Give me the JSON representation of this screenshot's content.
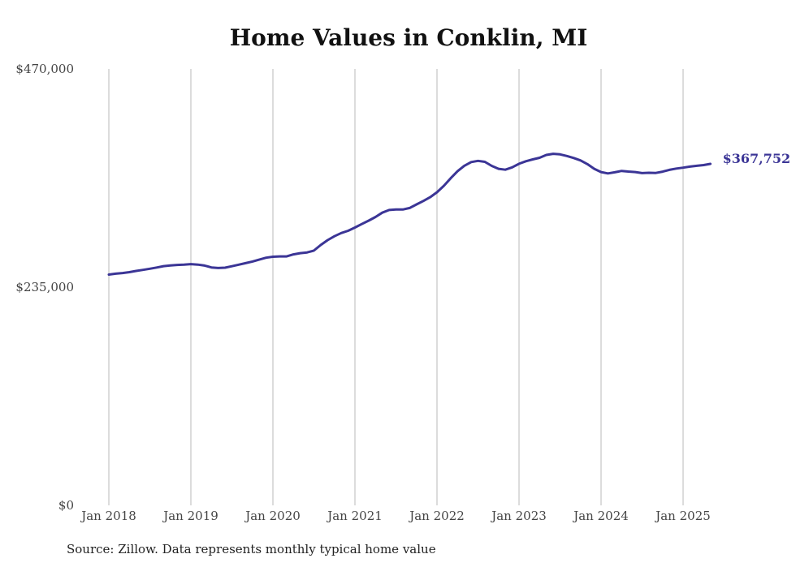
{
  "chart_data": {
    "type": "line",
    "title": "Home Values in Conklin, MI",
    "xlabel": "",
    "ylabel": "",
    "ylim": [
      0,
      470000
    ],
    "y_ticks": [
      {
        "value": 0,
        "label": "$0"
      },
      {
        "value": 235000,
        "label": "$235,000"
      },
      {
        "value": 470000,
        "label": "$470,000"
      }
    ],
    "x_ticks": [
      {
        "value": 2018.0,
        "label": "Jan 2018"
      },
      {
        "value": 2019.0,
        "label": "Jan 2019"
      },
      {
        "value": 2020.0,
        "label": "Jan 2020"
      },
      {
        "value": 2021.0,
        "label": "Jan 2021"
      },
      {
        "value": 2022.0,
        "label": "Jan 2022"
      },
      {
        "value": 2023.0,
        "label": "Jan 2023"
      },
      {
        "value": 2024.0,
        "label": "Jan 2024"
      },
      {
        "value": 2025.0,
        "label": "Jan 2025"
      }
    ],
    "grid": "vertical",
    "line_color": "#3b3596",
    "end_label": "$367,752",
    "series": [
      {
        "x": [
          2018.0,
          2018.083,
          2018.167,
          2018.25,
          2018.333,
          2018.417,
          2018.5,
          2018.583,
          2018.667,
          2018.75,
          2018.833,
          2018.917,
          2019.0,
          2019.083,
          2019.167,
          2019.25,
          2019.333,
          2019.417,
          2019.5,
          2019.583,
          2019.667,
          2019.75,
          2019.833,
          2019.917,
          2020.0,
          2020.083,
          2020.167,
          2020.25,
          2020.333,
          2020.417,
          2020.5,
          2020.583,
          2020.667,
          2020.75,
          2020.833,
          2020.917,
          2021.0,
          2021.083,
          2021.167,
          2021.25,
          2021.333,
          2021.417,
          2021.5,
          2021.583,
          2021.667,
          2021.75,
          2021.833,
          2021.917,
          2022.0,
          2022.083,
          2022.167,
          2022.25,
          2022.333,
          2022.417,
          2022.5,
          2022.583,
          2022.667,
          2022.75,
          2022.833,
          2022.917,
          2023.0,
          2023.083,
          2023.167,
          2023.25,
          2023.333,
          2023.417,
          2023.5,
          2023.583,
          2023.667,
          2023.75,
          2023.833,
          2023.917,
          2024.0,
          2024.083,
          2024.167,
          2024.25,
          2024.333,
          2024.417,
          2024.5,
          2024.583,
          2024.667,
          2024.75,
          2024.833,
          2024.917,
          2025.0,
          2025.083,
          2025.167,
          2025.25,
          2025.333
        ],
        "values": [
          248500,
          249500,
          250200,
          251200,
          252500,
          253600,
          254800,
          256100,
          257600,
          258400,
          258900,
          259200,
          259800,
          259300,
          258200,
          256200,
          255600,
          256000,
          257500,
          259200,
          260900,
          262600,
          264600,
          266700,
          267800,
          268100,
          268100,
          270300,
          271600,
          272400,
          274400,
          280400,
          285700,
          289900,
          293300,
          295700,
          299200,
          303000,
          306600,
          310600,
          315200,
          318100,
          318600,
          318600,
          320300,
          324100,
          327800,
          331900,
          337200,
          344100,
          352300,
          359800,
          365700,
          369700,
          371000,
          370000,
          365600,
          362500,
          361500,
          364000,
          367900,
          370600,
          372600,
          374300,
          377400,
          378600,
          378000,
          376300,
          374100,
          371500,
          367500,
          362500,
          359000,
          357500,
          358700,
          360200,
          359500,
          359000,
          357800,
          358200,
          358000,
          359400,
          361300,
          362700,
          363700,
          364800,
          365700,
          366500,
          367752
        ]
      }
    ]
  },
  "footer": {
    "source": "Source: Zillow. Data represents monthly typical home value"
  }
}
